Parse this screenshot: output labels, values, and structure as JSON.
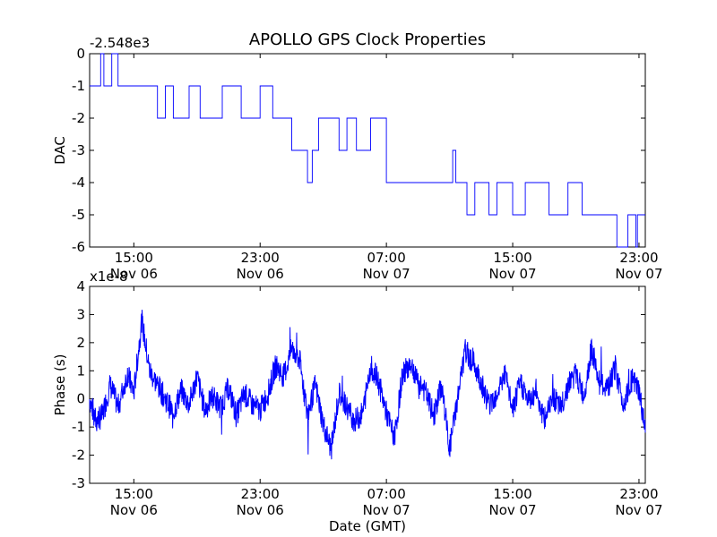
{
  "figure": {
    "title": "APOLLO GPS Clock Properties",
    "line_color": "#0000ff"
  },
  "chart_data": [
    {
      "type": "line",
      "ylabel": "DAC",
      "xlabel": "",
      "offset_label": "-2.548e3",
      "x_ticks": [
        {
          "time": "15:00",
          "date": "Nov 06"
        },
        {
          "time": "23:00",
          "date": "Nov 06"
        },
        {
          "time": "07:00",
          "date": "Nov 07"
        },
        {
          "time": "15:00",
          "date": "Nov 07"
        },
        {
          "time": "23:00",
          "date": "Nov 07"
        }
      ],
      "x_range_hours": [
        12.2,
        23.4
      ],
      "y_ticks": [
        "0",
        "-1",
        "-2",
        "-3",
        "-4",
        "-5",
        "-6"
      ],
      "ylim": [
        -6,
        0
      ],
      "series": [
        {
          "style": "step",
          "x": [
            12.2,
            12.9,
            13.1,
            13.6,
            14.0,
            14.3,
            16.5,
            17.0,
            17.5,
            18.5,
            19.2,
            20.6,
            21.8,
            23.0,
            23.8,
            24.4,
            25.0,
            26.0,
            26.3,
            26.7,
            28.0,
            28.5,
            29.1,
            30.0,
            31.0,
            32.0,
            33.0,
            34.6,
            35.2,
            35.4,
            36.1,
            36.6,
            37.5,
            38.0,
            39.0,
            39.8,
            40.4,
            41.3,
            42.5,
            43.4,
            44.2,
            44.5,
            45.6,
            46.3,
            46.8,
            46.9,
            47.4
          ],
          "y": [
            -1,
            0,
            -1,
            0,
            -1,
            -1,
            -2,
            -1,
            -2,
            -1,
            -2,
            -1,
            -2,
            -1,
            -2,
            -2,
            -3,
            -4,
            -3,
            -2,
            -3,
            -2,
            -3,
            -2,
            -4,
            -4,
            -4,
            -4,
            -3,
            -4,
            -5,
            -4,
            -5,
            -4,
            -5,
            -4,
            -4,
            -5,
            -4,
            -5,
            -5,
            -5,
            -6,
            -5,
            -6,
            -5,
            -5
          ]
        }
      ]
    },
    {
      "type": "line",
      "ylabel": "Phase (s)",
      "xlabel": "Date (GMT)",
      "offset_label": "x1e-8",
      "x_ticks": [
        {
          "time": "15:00",
          "date": "Nov 06"
        },
        {
          "time": "23:00",
          "date": "Nov 06"
        },
        {
          "time": "07:00",
          "date": "Nov 07"
        },
        {
          "time": "15:00",
          "date": "Nov 07"
        },
        {
          "time": "23:00",
          "date": "Nov 07"
        }
      ],
      "x_range_hours": [
        12.2,
        23.4
      ],
      "y_ticks": [
        "4",
        "3",
        "2",
        "1",
        "0",
        "-1",
        "-2",
        "-3"
      ],
      "ylim": [
        -3,
        4
      ],
      "series": [
        {
          "style": "line",
          "x": [
            12.2,
            12.6,
            13.0,
            13.5,
            14.0,
            14.6,
            15.0,
            15.5,
            16.0,
            16.5,
            17.0,
            17.5,
            18.0,
            18.5,
            19.0,
            19.5,
            20.0,
            20.5,
            21.0,
            21.5,
            22.0,
            22.5,
            23.0,
            23.5,
            24.0,
            24.5,
            25.0,
            25.5,
            26.0,
            26.5,
            27.0,
            27.5,
            28.0,
            28.5,
            29.0,
            29.5,
            30.0,
            30.5,
            31.0,
            31.5,
            32.0,
            32.5,
            33.0,
            33.5,
            34.0,
            34.5,
            35.0,
            35.5,
            36.0,
            36.5,
            37.0,
            37.5,
            38.0,
            38.5,
            39.0,
            39.5,
            40.0,
            40.5,
            41.0,
            41.5,
            42.0,
            42.5,
            43.0,
            43.5,
            44.0,
            44.5,
            45.0,
            45.5,
            46.0,
            46.5,
            47.0,
            47.4
          ],
          "y": [
            0.0,
            -0.8,
            -0.6,
            0.5,
            -0.3,
            0.9,
            0.2,
            2.8,
            1.0,
            0.5,
            0.0,
            -0.5,
            0.3,
            -0.2,
            0.8,
            -0.4,
            0.1,
            -0.3,
            0.4,
            -0.6,
            0.2,
            -0.2,
            -0.4,
            0.2,
            1.2,
            0.8,
            1.8,
            1.4,
            -0.6,
            0.5,
            -0.9,
            -1.8,
            0.2,
            -0.3,
            -0.8,
            -0.5,
            1.2,
            0.6,
            -0.5,
            -1.4,
            0.8,
            1.3,
            0.7,
            0.2,
            -0.6,
            0.5,
            -1.8,
            0.0,
            1.7,
            1.3,
            0.6,
            -0.2,
            0.2,
            0.9,
            -0.4,
            0.6,
            -0.1,
            0.3,
            -0.8,
            0.2,
            -0.4,
            0.5,
            0.9,
            0.1,
            1.8,
            0.6,
            0.3,
            1.1,
            -0.2,
            0.7,
            0.3,
            -1.2
          ]
        }
      ]
    }
  ]
}
